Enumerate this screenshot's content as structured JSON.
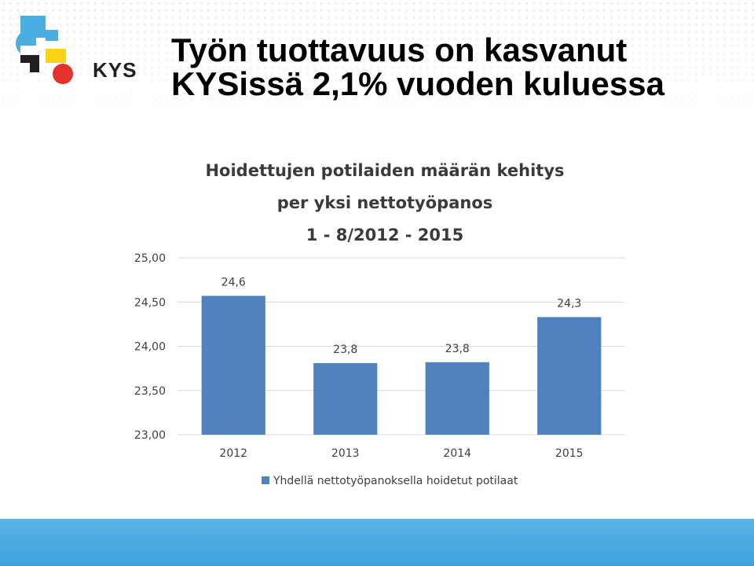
{
  "slide": {
    "title_line1": "Työn tuottavuus on kasvanut",
    "title_line2": "KYSissä 2,1% vuoden kuluessa"
  },
  "logo": {
    "text": "KYS"
  },
  "colors": {
    "bar": "#4f81bd",
    "grid": "#d9d9d9",
    "bottom_bar": "#4aaee1"
  },
  "chart_data": {
    "type": "bar",
    "title_lines": [
      "Hoidettujen potilaiden määrän kehitys",
      "per yksi nettotyöpanos",
      "1 - 8/2012 - 2015"
    ],
    "categories": [
      "2012",
      "2013",
      "2014",
      "2015"
    ],
    "series": [
      {
        "name": "Yhdellä nettotyöpanoksella hoidetut potilaat",
        "values": [
          24.57,
          23.81,
          23.82,
          24.33
        ],
        "labels": [
          "24,6",
          "23,8",
          "23,8",
          "24,3"
        ]
      }
    ],
    "ylim": [
      23.0,
      25.0
    ],
    "yticks": [
      "25,00",
      "24,50",
      "24,00",
      "23,50",
      "23,00"
    ],
    "ytick_values": [
      25.0,
      24.5,
      24.0,
      23.5,
      23.0
    ],
    "grid": true,
    "legend_position": "bottom"
  }
}
